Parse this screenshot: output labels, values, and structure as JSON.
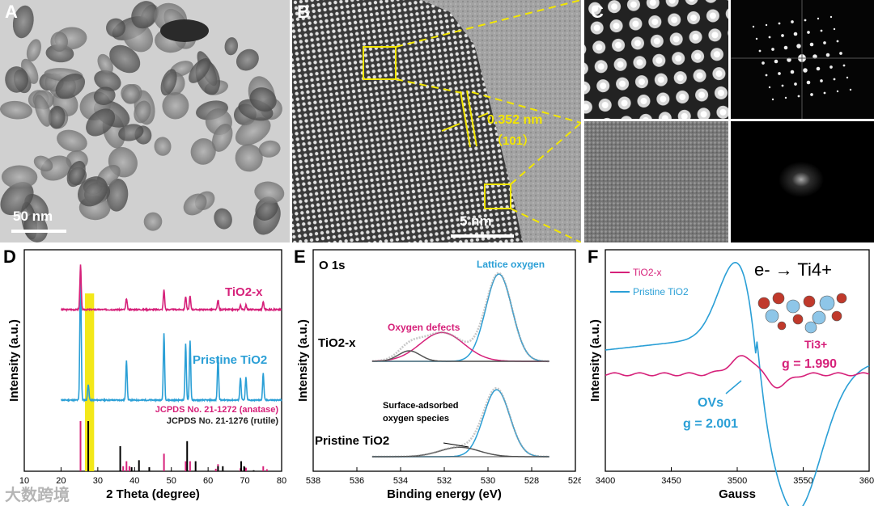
{
  "figure": {
    "panel_labels": [
      "A",
      "B",
      "C",
      "D",
      "E",
      "F"
    ],
    "watermark": "大数跨境"
  },
  "panelA": {
    "scale_bar": "50 nm"
  },
  "panelB": {
    "scale_bar": "5 nm",
    "d_spacing": "0.352 nm",
    "plane": "（101）"
  },
  "colors": {
    "tio2x": "#d6217a",
    "pristine": "#2a9fd6",
    "fit_blue": "#2a9fd6",
    "yellow": "#f2e600",
    "gray_fit": "#555555"
  },
  "chart_data": [
    {
      "type": "line",
      "panel": "D",
      "xlabel": "2 Theta (degree)",
      "ylabel": "Intensity (a.u.)",
      "xlim": [
        10,
        80
      ],
      "xticks": [
        10,
        20,
        30,
        40,
        50,
        60,
        70,
        80
      ],
      "highlight_range": [
        26.5,
        29.0
      ],
      "series": [
        {
          "name": "TiO2-x",
          "peaks": [
            [
              25.3,
              1.0
            ],
            [
              37.8,
              0.25
            ],
            [
              48.0,
              0.45
            ],
            [
              53.9,
              0.3
            ],
            [
              55.1,
              0.3
            ],
            [
              62.7,
              0.22
            ],
            [
              68.8,
              0.1
            ],
            [
              70.3,
              0.1
            ],
            [
              75.0,
              0.18
            ]
          ]
        },
        {
          "name": "Pristine TiO2",
          "peaks": [
            [
              25.3,
              1.0
            ],
            [
              27.4,
              0.12
            ],
            [
              37.8,
              0.3
            ],
            [
              48.0,
              0.5
            ],
            [
              53.9,
              0.42
            ],
            [
              55.1,
              0.45
            ],
            [
              62.7,
              0.33
            ],
            [
              68.8,
              0.17
            ],
            [
              70.3,
              0.17
            ],
            [
              75.0,
              0.2
            ]
          ]
        }
      ],
      "reference_legend": [
        "JCPDS No. 21-1272 (anatase)",
        "JCPDS No. 21-1276 (rutile)"
      ],
      "anatase_sticks": [
        [
          25.3,
          1.0
        ],
        [
          36.9,
          0.1
        ],
        [
          37.8,
          0.2
        ],
        [
          38.6,
          0.1
        ],
        [
          48.0,
          0.35
        ],
        [
          53.9,
          0.2
        ],
        [
          55.1,
          0.2
        ],
        [
          62.1,
          0.05
        ],
        [
          62.7,
          0.14
        ],
        [
          68.8,
          0.06
        ],
        [
          70.3,
          0.07
        ],
        [
          75.0,
          0.1
        ],
        [
          76.0,
          0.04
        ]
      ],
      "rutile_sticks": [
        [
          27.4,
          1.0
        ],
        [
          36.1,
          0.5
        ],
        [
          39.2,
          0.08
        ],
        [
          41.2,
          0.22
        ],
        [
          44.0,
          0.08
        ],
        [
          54.3,
          0.6
        ],
        [
          56.6,
          0.2
        ],
        [
          62.7,
          0.1
        ],
        [
          64.0,
          0.1
        ],
        [
          69.0,
          0.2
        ],
        [
          69.8,
          0.1
        ],
        [
          72.4,
          0.02
        ]
      ]
    },
    {
      "type": "line",
      "panel": "E",
      "title": "O 1s",
      "xlabel": "Binding energy (eV)",
      "ylabel": "Intensity (a.u.)",
      "xlim": [
        538,
        526
      ],
      "xticks": [
        538,
        536,
        534,
        532,
        530,
        528,
        526
      ],
      "series_labels": [
        "TiO2-x",
        "Pristine TiO2"
      ],
      "annotations": [
        "Lattice oxygen",
        "Oxygen defects",
        "Surface-adsorbed oxygen species"
      ],
      "tio2x_components": [
        {
          "name": "Lattice oxygen",
          "center": 529.5,
          "width": 0.6,
          "height": 1.0
        },
        {
          "name": "Oxygen defects",
          "center": 532.1,
          "width": 1.0,
          "height": 0.33
        },
        {
          "name": "",
          "center": 533.6,
          "width": 0.5,
          "height": 0.12
        }
      ],
      "pristine_components": [
        {
          "name": "Lattice oxygen",
          "center": 529.6,
          "width": 0.6,
          "height": 0.92
        },
        {
          "name": "Surface-adsorbed oxygen species",
          "center": 531.3,
          "width": 0.9,
          "height": 0.13
        }
      ]
    },
    {
      "type": "line",
      "panel": "F",
      "xlabel": "Gauss",
      "ylabel": "Intensity (a.u.)",
      "xlim": [
        3400,
        3600
      ],
      "xticks": [
        3400,
        3450,
        3500,
        3550,
        3600
      ],
      "legend": [
        "TiO2-x",
        "Pristine TiO2"
      ],
      "annotations": {
        "ovs": "OVs",
        "g_ovs": "g = 2.001",
        "ti3": "Ti3+",
        "g_ti3": "g = 1.990",
        "reaction": "e- → Ti4+"
      }
    }
  ]
}
